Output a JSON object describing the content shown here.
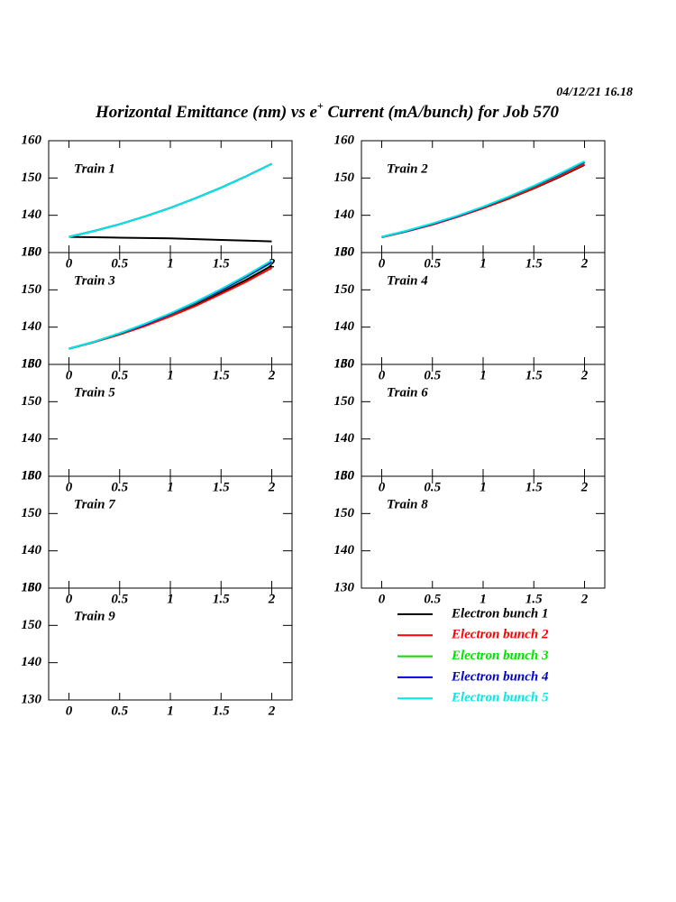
{
  "date": "04/12/21   16.18",
  "title": {
    "before": "Horizontal Emittance (nm) vs e",
    "sup": "+",
    "after": " Current (mA/bunch) for Job 570"
  },
  "legend": [
    {
      "name": "Electron bunch 1",
      "color": "#000000"
    },
    {
      "name": "Electron bunch 2",
      "color": "#ff0000"
    },
    {
      "name": "Electron bunch 3",
      "color": "#00e000"
    },
    {
      "name": "Electron bunch 4",
      "color": "#0000cc"
    },
    {
      "name": "Electron bunch 5",
      "color": "#00e8e8"
    }
  ],
  "chart_data": [
    {
      "type": "line",
      "title": "Train 1",
      "xlim": [
        -0.2,
        2.2
      ],
      "ylim": [
        130,
        160
      ],
      "xticks": [
        0,
        0.5,
        1,
        1.5,
        2
      ],
      "yticks": [
        130,
        140,
        150,
        160
      ],
      "x": [
        0,
        0.25,
        0.5,
        0.75,
        1,
        1.25,
        1.5,
        1.75,
        2
      ],
      "series": [
        {
          "values": [
            134.2,
            134.1,
            134.0,
            133.9,
            133.8,
            133.6,
            133.4,
            133.2,
            133.0
          ]
        },
        {
          "values": [
            134.2,
            135.8,
            137.6,
            139.7,
            142.0,
            144.6,
            147.4,
            150.5,
            153.8
          ]
        },
        {
          "values": [
            134.2,
            135.8,
            137.6,
            139.7,
            142.0,
            144.6,
            147.4,
            150.5,
            153.8
          ]
        },
        {
          "values": [
            134.2,
            135.8,
            137.6,
            139.7,
            142.0,
            144.6,
            147.4,
            150.5,
            153.8
          ]
        },
        {
          "values": [
            134.2,
            135.8,
            137.6,
            139.7,
            142.0,
            144.6,
            147.4,
            150.5,
            153.8
          ]
        }
      ]
    },
    {
      "type": "line",
      "title": "Train 2",
      "xlim": [
        -0.2,
        2.2
      ],
      "ylim": [
        130,
        160
      ],
      "xticks": [
        0,
        0.5,
        1,
        1.5,
        2
      ],
      "yticks": [
        130,
        140,
        150,
        160
      ],
      "x": [
        0,
        0.25,
        0.5,
        0.75,
        1,
        1.25,
        1.5,
        1.75,
        2
      ],
      "series": [
        {
          "values": [
            134.1,
            135.7,
            137.5,
            139.6,
            141.9,
            144.4,
            147.2,
            150.2,
            153.5
          ]
        },
        {
          "values": [
            134.1,
            135.7,
            137.5,
            139.6,
            141.9,
            144.5,
            147.3,
            150.4,
            153.7
          ]
        },
        {
          "values": [
            134.2,
            135.8,
            137.7,
            139.8,
            142.2,
            144.8,
            147.7,
            150.8,
            154.2
          ]
        },
        {
          "values": [
            134.2,
            135.8,
            137.7,
            139.8,
            142.2,
            144.9,
            147.8,
            150.9,
            154.3
          ]
        },
        {
          "values": [
            134.2,
            135.9,
            137.8,
            139.9,
            142.3,
            145.0,
            147.9,
            151.1,
            154.5
          ]
        }
      ]
    },
    {
      "type": "line",
      "title": "Train 3",
      "xlim": [
        -0.2,
        2.2
      ],
      "ylim": [
        130,
        160
      ],
      "xticks": [
        0,
        0.5,
        1,
        1.5,
        2
      ],
      "yticks": [
        130,
        140,
        150,
        160
      ],
      "x": [
        0,
        0.25,
        0.5,
        0.75,
        1,
        1.25,
        1.5,
        1.75,
        2
      ],
      "series": [
        {
          "values": [
            134.2,
            136.0,
            138.1,
            140.5,
            143.1,
            146.0,
            149.3,
            152.7,
            156.5
          ]
        },
        {
          "values": [
            134.2,
            136.0,
            138.0,
            140.3,
            142.9,
            145.7,
            148.9,
            152.2,
            155.9
          ]
        },
        {
          "values": [
            134.2,
            136.1,
            138.2,
            140.7,
            143.4,
            146.5,
            149.8,
            153.4,
            157.3
          ]
        },
        {
          "values": [
            134.2,
            136.1,
            138.3,
            140.7,
            143.5,
            146.6,
            149.9,
            153.6,
            157.5
          ]
        },
        {
          "values": [
            134.2,
            136.1,
            138.4,
            140.9,
            143.7,
            146.8,
            150.2,
            153.9,
            157.9
          ]
        }
      ]
    },
    {
      "type": "line",
      "title": "Train 4",
      "xlim": [
        -0.2,
        2.2
      ],
      "ylim": [
        130,
        160
      ],
      "xticks": [
        0,
        0.5,
        1,
        1.5,
        2
      ],
      "yticks": [
        130,
        140,
        150,
        160
      ],
      "series": []
    },
    {
      "type": "line",
      "title": "Train 5",
      "xlim": [
        -0.2,
        2.2
      ],
      "ylim": [
        130,
        160
      ],
      "xticks": [
        0,
        0.5,
        1,
        1.5,
        2
      ],
      "yticks": [
        130,
        140,
        150,
        160
      ],
      "series": []
    },
    {
      "type": "line",
      "title": "Train 6",
      "xlim": [
        -0.2,
        2.2
      ],
      "ylim": [
        130,
        160
      ],
      "xticks": [
        0,
        0.5,
        1,
        1.5,
        2
      ],
      "yticks": [
        130,
        140,
        150,
        160
      ],
      "series": []
    },
    {
      "type": "line",
      "title": "Train 7",
      "xlim": [
        -0.2,
        2.2
      ],
      "ylim": [
        130,
        160
      ],
      "xticks": [
        0,
        0.5,
        1,
        1.5,
        2
      ],
      "yticks": [
        130,
        140,
        150,
        160
      ],
      "series": []
    },
    {
      "type": "line",
      "title": "Train 8",
      "xlim": [
        -0.2,
        2.2
      ],
      "ylim": [
        130,
        160
      ],
      "xticks": [
        0,
        0.5,
        1,
        1.5,
        2
      ],
      "yticks": [
        130,
        140,
        150,
        160
      ],
      "series": []
    },
    {
      "type": "line",
      "title": "Train 9",
      "xlim": [
        -0.2,
        2.2
      ],
      "ylim": [
        130,
        160
      ],
      "xticks": [
        0,
        0.5,
        1,
        1.5,
        2
      ],
      "yticks": [
        130,
        140,
        150,
        160
      ],
      "series": []
    }
  ]
}
